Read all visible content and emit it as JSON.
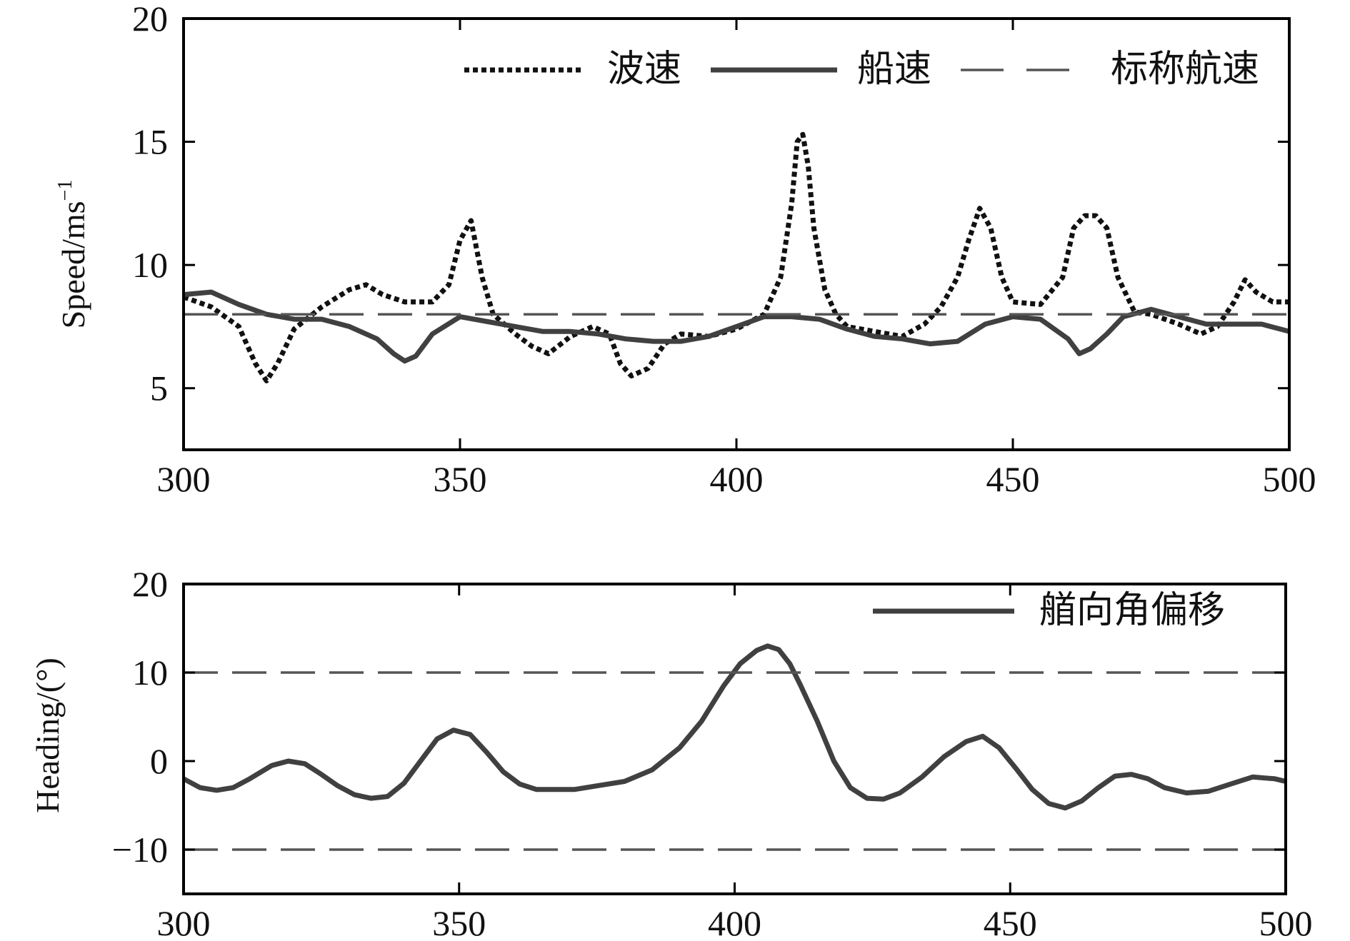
{
  "chart_data": [
    {
      "type": "line",
      "ylabel": "Speed/ms",
      "ylabel_sup": "−1",
      "xlim": [
        300,
        500
      ],
      "ylim": [
        2.5,
        20
      ],
      "xticks": [
        300,
        350,
        400,
        450,
        500
      ],
      "xtick_labels": [
        "300",
        "350",
        "400",
        "450",
        "500"
      ],
      "yticks": [
        5,
        10,
        15,
        20
      ],
      "ytick_labels": [
        "5",
        "10",
        "15",
        "20"
      ],
      "legend_position": "top-right",
      "grid": false,
      "series": [
        {
          "name": "波速",
          "style": "dotted",
          "color": "#111111",
          "x": [
            300,
            305,
            310,
            313,
            315,
            317,
            320,
            325,
            330,
            333,
            336,
            340,
            345,
            348,
            350,
            352,
            354,
            356,
            360,
            363,
            366,
            370,
            374,
            377,
            379,
            381,
            384,
            387,
            390,
            395,
            400,
            405,
            408,
            410,
            411,
            412,
            413,
            414,
            416,
            418,
            420,
            425,
            430,
            434,
            437,
            440,
            442,
            444,
            446,
            448,
            450,
            455,
            459,
            461,
            463,
            465,
            467,
            469,
            472,
            475,
            480,
            484,
            487,
            490,
            492,
            494,
            497,
            500
          ],
          "y": [
            8.7,
            8.3,
            7.5,
            6.0,
            5.3,
            6.0,
            7.4,
            8.3,
            9.0,
            9.2,
            8.8,
            8.5,
            8.5,
            9.2,
            11.0,
            11.8,
            9.5,
            8.0,
            7.2,
            6.7,
            6.4,
            7.1,
            7.5,
            7.2,
            6.0,
            5.5,
            5.8,
            6.8,
            7.2,
            7.1,
            7.4,
            8.0,
            9.5,
            12.5,
            15.0,
            15.3,
            14.0,
            11.5,
            9.0,
            8.0,
            7.5,
            7.3,
            7.1,
            7.6,
            8.3,
            9.5,
            11.0,
            12.3,
            11.5,
            9.5,
            8.5,
            8.4,
            9.5,
            11.5,
            12.0,
            12.0,
            11.5,
            9.5,
            8.1,
            8.0,
            7.6,
            7.2,
            7.5,
            8.5,
            9.4,
            8.9,
            8.5,
            8.5
          ]
        },
        {
          "name": "船速",
          "style": "solid-thick",
          "color": "#404040",
          "x": [
            300,
            305,
            310,
            315,
            320,
            325,
            330,
            335,
            338,
            340,
            342,
            345,
            350,
            355,
            360,
            365,
            370,
            375,
            380,
            385,
            390,
            395,
            400,
            405,
            410,
            415,
            420,
            425,
            430,
            435,
            440,
            445,
            450,
            455,
            460,
            462,
            464,
            467,
            470,
            475,
            480,
            485,
            490,
            495,
            500
          ],
          "y": [
            8.8,
            8.9,
            8.4,
            8.0,
            7.8,
            7.8,
            7.5,
            7.0,
            6.4,
            6.1,
            6.3,
            7.2,
            7.9,
            7.7,
            7.5,
            7.3,
            7.3,
            7.2,
            7.0,
            6.9,
            6.9,
            7.1,
            7.5,
            7.9,
            7.9,
            7.8,
            7.4,
            7.1,
            7.0,
            6.8,
            6.9,
            7.6,
            7.9,
            7.8,
            7.0,
            6.4,
            6.6,
            7.2,
            7.9,
            8.2,
            7.9,
            7.6,
            7.6,
            7.6,
            7.3
          ]
        },
        {
          "name": "标称航速",
          "style": "dashed",
          "color": "#555555",
          "x": [
            300,
            500
          ],
          "y": [
            8.0,
            8.0
          ]
        }
      ]
    },
    {
      "type": "line",
      "ylabel": "Heading/(°)",
      "xlim": [
        300,
        500
      ],
      "ylim": [
        -15,
        20
      ],
      "xticks": [
        300,
        350,
        400,
        450,
        500
      ],
      "xtick_labels": [
        "300",
        "350",
        "400",
        "450",
        "500"
      ],
      "yticks": [
        -10,
        0,
        10,
        20
      ],
      "ytick_labels": [
        "−10",
        "0",
        "10",
        "20"
      ],
      "legend_position": "top-right",
      "grid": false,
      "series": [
        {
          "name": "艏向角偏移",
          "style": "solid-thick",
          "color": "#404040",
          "x": [
            300,
            303,
            306,
            309,
            312,
            316,
            319,
            322,
            325,
            328,
            331,
            334,
            337,
            340,
            343,
            346,
            349,
            352,
            355,
            358,
            361,
            364,
            367,
            371,
            375,
            380,
            385,
            390,
            394,
            398,
            401,
            404,
            406,
            408,
            410,
            412,
            415,
            418,
            421,
            424,
            427,
            430,
            434,
            438,
            442,
            445,
            448,
            451,
            454,
            457,
            460,
            463,
            466,
            469,
            472,
            475,
            478,
            482,
            486,
            490,
            494,
            498,
            500
          ],
          "y": [
            -2,
            -3,
            -3.3,
            -3,
            -2,
            -0.5,
            0,
            -0.3,
            -1.5,
            -2.8,
            -3.8,
            -4.2,
            -4,
            -2.5,
            0,
            2.5,
            3.5,
            3,
            1,
            -1.2,
            -2.6,
            -3.2,
            -3.2,
            -3.2,
            -2.8,
            -2.3,
            -1,
            1.5,
            4.5,
            8.5,
            11,
            12.5,
            13,
            12.6,
            11,
            8.5,
            4.5,
            0,
            -3,
            -4.2,
            -4.3,
            -3.6,
            -1.8,
            0.5,
            2.2,
            2.8,
            1.5,
            -0.8,
            -3.2,
            -4.8,
            -5.3,
            -4.5,
            -3,
            -1.7,
            -1.5,
            -2,
            -3,
            -3.6,
            -3.4,
            -2.6,
            -1.8,
            -2,
            -2.3
          ]
        },
        {
          "name": "",
          "style": "dashed",
          "color": "#555555",
          "x": [
            300,
            500
          ],
          "y": [
            10,
            10
          ]
        },
        {
          "name": "",
          "style": "dashed",
          "color": "#555555",
          "x": [
            300,
            500
          ],
          "y": [
            -10,
            -10
          ]
        }
      ]
    }
  ]
}
